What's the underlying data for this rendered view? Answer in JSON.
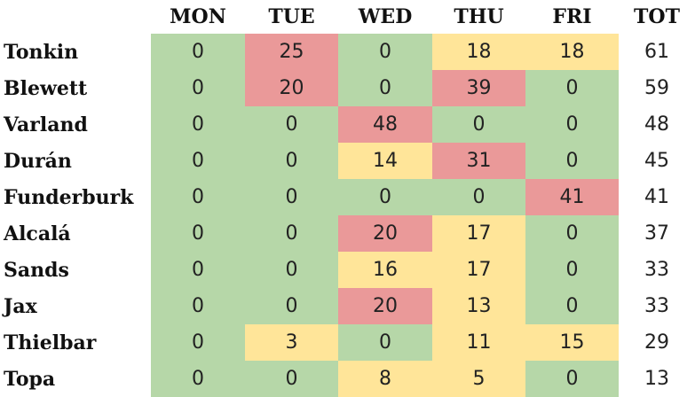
{
  "table": {
    "columns": [
      "MON",
      "TUE",
      "WED",
      "THU",
      "FRI",
      "TOT"
    ],
    "rows": [
      {
        "name": "Tonkin",
        "values": [
          0,
          25,
          0,
          18,
          18
        ],
        "colors": [
          "#b6d7a8",
          "#ea9999",
          "#b6d7a8",
          "#ffe599",
          "#ffe599"
        ],
        "total": 61
      },
      {
        "name": "Blewett",
        "values": [
          0,
          20,
          0,
          39,
          0
        ],
        "colors": [
          "#b6d7a8",
          "#ea9999",
          "#b6d7a8",
          "#ea9999",
          "#b6d7a8"
        ],
        "total": 59
      },
      {
        "name": "Varland",
        "values": [
          0,
          0,
          48,
          0,
          0
        ],
        "colors": [
          "#b6d7a8",
          "#b6d7a8",
          "#ea9999",
          "#b6d7a8",
          "#b6d7a8"
        ],
        "total": 48
      },
      {
        "name": "Durán",
        "values": [
          0,
          0,
          14,
          31,
          0
        ],
        "colors": [
          "#b6d7a8",
          "#b6d7a8",
          "#ffe599",
          "#ea9999",
          "#b6d7a8"
        ],
        "total": 45
      },
      {
        "name": "Funderburk",
        "values": [
          0,
          0,
          0,
          0,
          41
        ],
        "colors": [
          "#b6d7a8",
          "#b6d7a8",
          "#b6d7a8",
          "#b6d7a8",
          "#ea9999"
        ],
        "total": 41
      },
      {
        "name": "Alcalá",
        "values": [
          0,
          0,
          20,
          17,
          0
        ],
        "colors": [
          "#b6d7a8",
          "#b6d7a8",
          "#ea9999",
          "#ffe599",
          "#b6d7a8"
        ],
        "total": 37
      },
      {
        "name": "Sands",
        "values": [
          0,
          0,
          16,
          17,
          0
        ],
        "colors": [
          "#b6d7a8",
          "#b6d7a8",
          "#ffe599",
          "#ffe599",
          "#b6d7a8"
        ],
        "total": 33
      },
      {
        "name": "Jax",
        "values": [
          0,
          0,
          20,
          13,
          0
        ],
        "colors": [
          "#b6d7a8",
          "#b6d7a8",
          "#ea9999",
          "#ffe599",
          "#b6d7a8"
        ],
        "total": 33
      },
      {
        "name": "Thielbar",
        "values": [
          0,
          3,
          0,
          11,
          15
        ],
        "colors": [
          "#b6d7a8",
          "#ffe599",
          "#b6d7a8",
          "#ffe599",
          "#ffe599"
        ],
        "total": 29
      },
      {
        "name": "Topa",
        "values": [
          0,
          0,
          8,
          5,
          0
        ],
        "colors": [
          "#b6d7a8",
          "#b6d7a8",
          "#ffe599",
          "#ffe599",
          "#b6d7a8"
        ],
        "total": 13
      }
    ]
  }
}
